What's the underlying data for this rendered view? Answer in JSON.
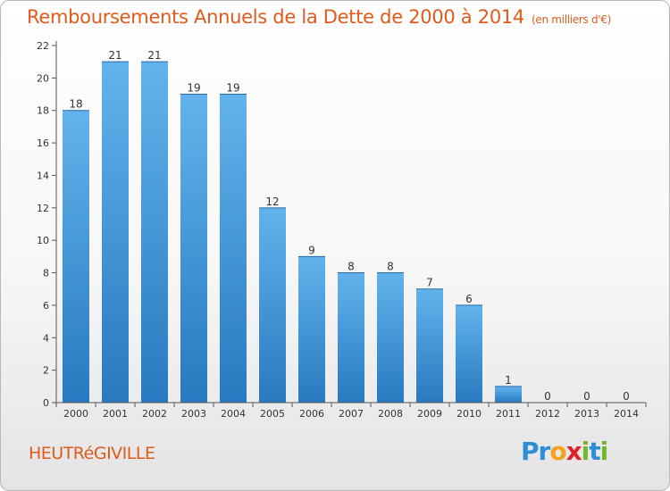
{
  "header": {
    "title": "Remboursements Annuels de la Dette de 2000 à 2014",
    "unit": "(en milliers d'€)"
  },
  "footer": {
    "town": "HEUTRéGIVILLE"
  },
  "brand": {
    "letters": [
      "P",
      "r",
      "o",
      "x",
      "i",
      "t",
      "i"
    ],
    "colors": [
      "#2c8fd6",
      "#2c8fd6",
      "#f2a21b",
      "#e2212b",
      "#73b72e",
      "#2c8fd6",
      "#73b72e"
    ]
  },
  "chart_data": {
    "type": "bar",
    "title": "Remboursements Annuels de la Dette de 2000 à 2014",
    "ylabel": "(en milliers d'€)",
    "xlabel": "",
    "categories": [
      "2000",
      "2001",
      "2002",
      "2003",
      "2004",
      "2005",
      "2006",
      "2007",
      "2008",
      "2009",
      "2010",
      "2011",
      "2012",
      "2013",
      "2014"
    ],
    "values": [
      18,
      21,
      21,
      19,
      19,
      12,
      9,
      8,
      8,
      7,
      6,
      1,
      0,
      0,
      0
    ],
    "ylim": [
      0,
      22
    ],
    "yticks": [
      0,
      2,
      4,
      6,
      8,
      10,
      12,
      14,
      16,
      18,
      20,
      22
    ],
    "grid": false,
    "colors": {
      "bar_light": "#62b3ec",
      "bar_dark": "#2879bf",
      "axis": "#555555"
    }
  }
}
